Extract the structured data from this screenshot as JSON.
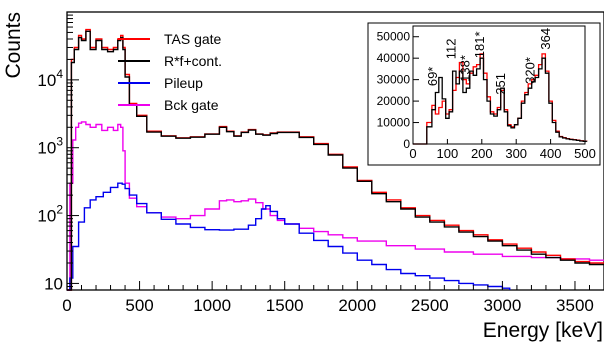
{
  "chart_data": [
    {
      "type": "line",
      "title": "",
      "xlabel": "Energy [keV]",
      "ylabel": "Counts",
      "xlim": [
        0,
        3700
      ],
      "ylim": [
        8,
        100000
      ],
      "yscale": "log",
      "grid": false,
      "legend_position": "top-left",
      "x_ticks": [
        "0",
        "500",
        "1000",
        "1500",
        "2000",
        "2500",
        "3000",
        "3500"
      ],
      "y_ticks": [
        "10",
        "10^2",
        "10^3",
        "10^4"
      ],
      "series": [
        {
          "name": "TAS gate",
          "color": "#ff0000",
          "x": [
            0,
            30,
            50,
            80,
            100,
            130,
            160,
            200,
            240,
            280,
            320,
            350,
            370,
            385,
            400,
            430,
            480,
            550,
            650,
            750,
            850,
            950,
            1050,
            1100,
            1150,
            1200,
            1250,
            1300,
            1350,
            1400,
            1450,
            1500,
            1600,
            1700,
            1800,
            1900,
            2000,
            2100,
            2200,
            2300,
            2400,
            2500,
            2600,
            2700,
            2800,
            2900,
            3000,
            3100,
            3200,
            3300,
            3400,
            3500,
            3600,
            3700
          ],
          "y": [
            8,
            20000,
            30000,
            45000,
            40000,
            55000,
            30000,
            40000,
            30000,
            28000,
            30000,
            40000,
            45000,
            30000,
            12000,
            4500,
            3000,
            1750,
            1500,
            1400,
            1450,
            1600,
            2050,
            1750,
            1500,
            1700,
            1850,
            1600,
            1550,
            1650,
            1700,
            1700,
            1450,
            1150,
            800,
            520,
            330,
            220,
            170,
            130,
            100,
            85,
            72,
            60,
            52,
            44,
            38,
            33,
            29,
            26,
            23,
            21,
            20,
            20
          ]
        },
        {
          "name": "R*f+cont.",
          "color": "#000000",
          "x": [
            0,
            30,
            50,
            80,
            100,
            130,
            160,
            200,
            240,
            280,
            320,
            350,
            370,
            385,
            400,
            430,
            480,
            550,
            650,
            750,
            850,
            950,
            1050,
            1100,
            1150,
            1200,
            1250,
            1300,
            1350,
            1400,
            1450,
            1500,
            1600,
            1700,
            1800,
            1900,
            2000,
            2100,
            2200,
            2300,
            2400,
            2500,
            2600,
            2700,
            2800,
            2900,
            3000,
            3100,
            3200,
            3300,
            3400,
            3500,
            3600,
            3700
          ],
          "y": [
            8,
            18000,
            28000,
            42000,
            38000,
            52000,
            28000,
            38000,
            28000,
            26000,
            28000,
            38000,
            42000,
            28000,
            11000,
            4300,
            2900,
            1700,
            1480,
            1380,
            1430,
            1580,
            2000,
            1720,
            1480,
            1680,
            1820,
            1580,
            1530,
            1620,
            1680,
            1680,
            1420,
            1120,
            780,
            500,
            320,
            210,
            160,
            125,
            95,
            80,
            68,
            57,
            49,
            42,
            36,
            31,
            27,
            24,
            22,
            20,
            19,
            19
          ]
        },
        {
          "name": "Pileup",
          "color": "#0000ee",
          "x": [
            0,
            20,
            40,
            80,
            120,
            160,
            200,
            250,
            300,
            350,
            380,
            400,
            430,
            480,
            550,
            650,
            750,
            850,
            950,
            1050,
            1150,
            1250,
            1300,
            1340,
            1370,
            1400,
            1450,
            1500,
            1600,
            1700,
            1800,
            1900,
            2000,
            2100,
            2200,
            2300,
            2400,
            2500,
            2600,
            2700,
            2800,
            2900,
            3000,
            3050
          ],
          "y": [
            8,
            12,
            35,
            80,
            130,
            170,
            190,
            220,
            260,
            300,
            290,
            250,
            200,
            150,
            110,
            88,
            75,
            67,
            62,
            61,
            63,
            72,
            90,
            125,
            140,
            115,
            90,
            75,
            55,
            43,
            35,
            28,
            22,
            19,
            16,
            14,
            13,
            12,
            11,
            10,
            9.5,
            9,
            8.5,
            8
          ]
        },
        {
          "name": "Bck gate",
          "color": "#ee00ee",
          "x": [
            0,
            20,
            40,
            60,
            80,
            100,
            130,
            160,
            200,
            240,
            280,
            320,
            350,
            370,
            385,
            400,
            430,
            480,
            550,
            650,
            750,
            850,
            950,
            1050,
            1100,
            1150,
            1200,
            1250,
            1300,
            1350,
            1400,
            1450,
            1500,
            1600,
            1700,
            1800,
            1900,
            2000,
            2200,
            2400,
            2600,
            2800,
            3000,
            3200,
            3400,
            3600,
            3700
          ],
          "y": [
            8,
            300,
            1300,
            2000,
            2300,
            2400,
            2200,
            2000,
            2200,
            1800,
            2000,
            1800,
            2200,
            2000,
            900,
            300,
            180,
            135,
            110,
            95,
            90,
            100,
            125,
            165,
            170,
            160,
            165,
            175,
            155,
            125,
            100,
            85,
            75,
            65,
            58,
            52,
            47,
            42,
            36,
            32,
            29,
            27,
            25,
            24,
            23,
            22,
            22
          ]
        }
      ]
    },
    {
      "type": "line",
      "title": "",
      "xlabel": "",
      "ylabel": "",
      "xlim": [
        0,
        500
      ],
      "ylim": [
        0,
        55000
      ],
      "x_ticks": [
        "0",
        "100",
        "200",
        "300",
        "400",
        "500"
      ],
      "y_ticks": [
        "0",
        "10000",
        "20000",
        "30000",
        "40000",
        "50000"
      ],
      "annotations": [
        {
          "text": "69*",
          "x": 58,
          "y": 27000
        },
        {
          "text": "112",
          "x": 112,
          "y": 39500
        },
        {
          "text": "138*",
          "x": 152,
          "y": 29000
        },
        {
          "text": "181*",
          "x": 195,
          "y": 40000
        },
        {
          "text": "251",
          "x": 256,
          "y": 23000
        },
        {
          "text": "320*",
          "x": 342,
          "y": 28000
        },
        {
          "text": "364",
          "x": 386,
          "y": 44000
        }
      ],
      "series": [
        {
          "name": "TAS gate",
          "color": "#ff0000",
          "x": [
            0,
            20,
            40,
            55,
            65,
            75,
            85,
            95,
            105,
            115,
            125,
            135,
            145,
            155,
            165,
            175,
            185,
            195,
            205,
            215,
            225,
            235,
            245,
            255,
            265,
            275,
            285,
            295,
            305,
            315,
            325,
            335,
            345,
            355,
            365,
            375,
            385,
            395,
            405,
            415,
            425,
            435,
            445,
            455,
            465,
            475,
            485,
            495,
            505
          ],
          "y": [
            0,
            0,
            10000,
            18000,
            14000,
            17000,
            20000,
            14000,
            16000,
            25000,
            31000,
            38000,
            30000,
            28000,
            33000,
            36000,
            37000,
            42000,
            33000,
            22000,
            15000,
            14000,
            17000,
            25000,
            16000,
            9000,
            8000,
            9000,
            12000,
            20000,
            24000,
            28000,
            30000,
            32000,
            37000,
            42000,
            34000,
            20000,
            11000,
            6000,
            3500,
            3000,
            2500,
            2200,
            2000,
            1800,
            1500,
            1300,
            1200
          ]
        },
        {
          "name": "R*f+cont.",
          "color": "#000000",
          "x": [
            0,
            20,
            40,
            55,
            65,
            75,
            85,
            95,
            105,
            115,
            125,
            135,
            145,
            155,
            165,
            175,
            185,
            195,
            205,
            215,
            225,
            235,
            245,
            255,
            265,
            275,
            285,
            295,
            305,
            315,
            325,
            335,
            345,
            355,
            365,
            375,
            385,
            395,
            405,
            415,
            425,
            435,
            445,
            455,
            465,
            475,
            485,
            495,
            505
          ],
          "y": [
            0,
            0,
            8000,
            16000,
            24000,
            31000,
            21000,
            12000,
            15000,
            34000,
            28000,
            34000,
            24000,
            26000,
            34000,
            32000,
            35000,
            40000,
            30000,
            20000,
            14000,
            13000,
            16000,
            26000,
            15000,
            8500,
            7500,
            9000,
            12000,
            19000,
            23000,
            26000,
            29000,
            31000,
            35000,
            40000,
            33000,
            19000,
            10000,
            5500,
            3300,
            2800,
            2400,
            2100,
            1900,
            1700,
            1400,
            1200,
            1100
          ]
        }
      ]
    }
  ]
}
